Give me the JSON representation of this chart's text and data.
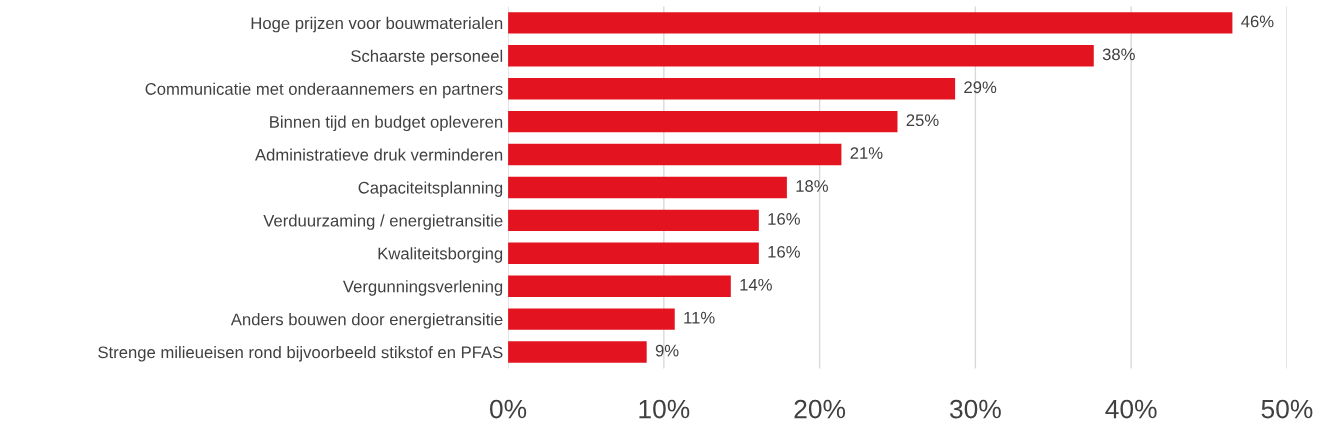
{
  "chart_data": {
    "type": "bar",
    "orientation": "horizontal",
    "categories": [
      "Hoge prijzen voor bouwmaterialen",
      "Schaarste personeel",
      "Communicatie met onderaannemers en partners",
      "Binnen tijd en budget opleveren",
      "Administratieve druk verminderen",
      "Capaciteitsplanning",
      "Verduurzaming / energietransitie",
      "Kwaliteitsborging",
      "Vergunningsverlening",
      "Anders bouwen door energietransitie",
      "Strenge milieueisen rond bijvoorbeeld stikstof en PFAS"
    ],
    "values": [
      46.5,
      37.6,
      28.7,
      25.0,
      21.4,
      17.9,
      16.1,
      16.1,
      14.3,
      10.7,
      8.9
    ],
    "value_labels": [
      "46%",
      "38%",
      "29%",
      "25%",
      "21%",
      "18%",
      "16%",
      "16%",
      "14%",
      "11%",
      "9%"
    ],
    "color": "#e3141f",
    "xlim": [
      0,
      50
    ],
    "xticks": [
      {
        "value": 0,
        "label": "0%"
      },
      {
        "value": 10,
        "label": "10%"
      },
      {
        "value": 20,
        "label": "20%"
      },
      {
        "value": 30,
        "label": "30%"
      },
      {
        "value": 40,
        "label": "40%"
      },
      {
        "value": 50,
        "label": "50%"
      }
    ],
    "grid": "x",
    "legend": false
  }
}
